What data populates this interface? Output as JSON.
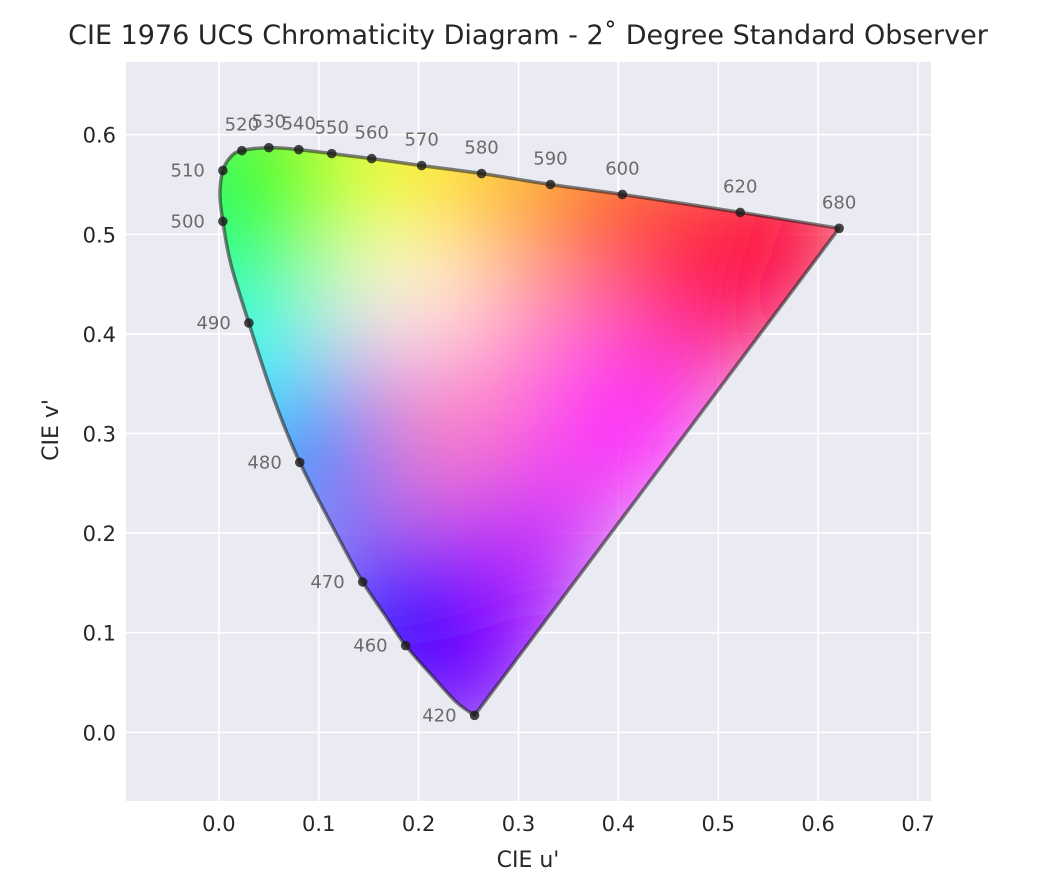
{
  "chart_data": {
    "type": "scatter",
    "title": "CIE 1976 UCS Chromaticity Diagram - 2˚ Degree Standard Observer",
    "xlabel": "CIE u'",
    "ylabel": "CIE v'",
    "xlim": [
      -0.093,
      0.713
    ],
    "ylim": [
      -0.069,
      0.673
    ],
    "grid": true,
    "background_color": "#eaeaf2",
    "grid_color": "#ffffff",
    "locus_color": "#1a1a1a",
    "x_ticks": [
      {
        "value": 0.0,
        "label": "0.0"
      },
      {
        "value": 0.1,
        "label": "0.1"
      },
      {
        "value": 0.2,
        "label": "0.2"
      },
      {
        "value": 0.3,
        "label": "0.3"
      },
      {
        "value": 0.4,
        "label": "0.4"
      },
      {
        "value": 0.5,
        "label": "0.5"
      },
      {
        "value": 0.6,
        "label": "0.6"
      },
      {
        "value": 0.7,
        "label": "0.7"
      }
    ],
    "y_ticks": [
      {
        "value": 0.0,
        "label": "0.0"
      },
      {
        "value": 0.1,
        "label": "0.1"
      },
      {
        "value": 0.2,
        "label": "0.2"
      },
      {
        "value": 0.3,
        "label": "0.3"
      },
      {
        "value": 0.4,
        "label": "0.4"
      },
      {
        "value": 0.5,
        "label": "0.5"
      },
      {
        "value": 0.6,
        "label": "0.6"
      }
    ],
    "spectral_locus": [
      [
        0.256,
        0.017
      ],
      [
        0.238,
        0.03
      ],
      [
        0.215,
        0.055
      ],
      [
        0.187,
        0.087
      ],
      [
        0.166,
        0.118
      ],
      [
        0.144,
        0.151
      ],
      [
        0.12,
        0.195
      ],
      [
        0.081,
        0.271
      ],
      [
        0.055,
        0.335
      ],
      [
        0.03,
        0.411
      ],
      [
        0.012,
        0.47
      ],
      [
        0.004,
        0.513
      ],
      [
        0.001,
        0.54
      ],
      [
        0.004,
        0.564
      ],
      [
        0.012,
        0.578
      ],
      [
        0.023,
        0.584
      ],
      [
        0.05,
        0.587
      ],
      [
        0.08,
        0.585
      ],
      [
        0.113,
        0.581
      ],
      [
        0.153,
        0.576
      ],
      [
        0.203,
        0.569
      ],
      [
        0.263,
        0.561
      ],
      [
        0.332,
        0.55
      ],
      [
        0.404,
        0.54
      ],
      [
        0.522,
        0.522
      ],
      [
        0.621,
        0.506
      ]
    ],
    "wavelength_markers": [
      {
        "label": "420",
        "u": 0.256,
        "v": 0.017,
        "side": "left"
      },
      {
        "label": "460",
        "u": 0.187,
        "v": 0.087,
        "side": "left"
      },
      {
        "label": "470",
        "u": 0.144,
        "v": 0.151,
        "side": "left"
      },
      {
        "label": "480",
        "u": 0.081,
        "v": 0.271,
        "side": "left"
      },
      {
        "label": "490",
        "u": 0.03,
        "v": 0.411,
        "side": "left"
      },
      {
        "label": "500",
        "u": 0.004,
        "v": 0.513,
        "side": "left"
      },
      {
        "label": "510",
        "u": 0.004,
        "v": 0.564,
        "side": "left"
      },
      {
        "label": "520",
        "u": 0.023,
        "v": 0.584,
        "side": "top"
      },
      {
        "label": "530",
        "u": 0.05,
        "v": 0.587,
        "side": "top"
      },
      {
        "label": "540",
        "u": 0.08,
        "v": 0.585,
        "side": "top"
      },
      {
        "label": "550",
        "u": 0.113,
        "v": 0.581,
        "side": "top"
      },
      {
        "label": "560",
        "u": 0.153,
        "v": 0.576,
        "side": "top"
      },
      {
        "label": "570",
        "u": 0.203,
        "v": 0.569,
        "side": "top"
      },
      {
        "label": "580",
        "u": 0.263,
        "v": 0.561,
        "side": "top"
      },
      {
        "label": "590",
        "u": 0.332,
        "v": 0.55,
        "side": "top"
      },
      {
        "label": "600",
        "u": 0.404,
        "v": 0.54,
        "side": "top"
      },
      {
        "label": "620",
        "u": 0.522,
        "v": 0.522,
        "side": "top"
      },
      {
        "label": "680",
        "u": 0.621,
        "v": 0.506,
        "side": "top"
      }
    ],
    "color_fill": [
      {
        "u": 0.196,
        "v": 0.467,
        "color": "#ffffff"
      },
      {
        "u": 0.12,
        "v": 0.548,
        "color": "#c8ff3c"
      },
      {
        "u": 0.197,
        "v": 0.555,
        "color": "#ffff00"
      },
      {
        "u": 0.303,
        "v": 0.539,
        "color": "#ffb800"
      },
      {
        "u": 0.415,
        "v": 0.525,
        "color": "#ff5000"
      },
      {
        "u": 0.56,
        "v": 0.506,
        "color": "#ff0000"
      },
      {
        "u": 0.5,
        "v": 0.44,
        "color": "#ff004f"
      },
      {
        "u": 0.4,
        "v": 0.31,
        "color": "#ff00ff"
      },
      {
        "u": 0.3,
        "v": 0.17,
        "color": "#b400ff"
      },
      {
        "u": 0.24,
        "v": 0.055,
        "color": "#7a00ff"
      },
      {
        "u": 0.17,
        "v": 0.12,
        "color": "#0000ff"
      },
      {
        "u": 0.09,
        "v": 0.28,
        "color": "#0078ff"
      },
      {
        "u": 0.03,
        "v": 0.405,
        "color": "#00ffff"
      },
      {
        "u": 0.015,
        "v": 0.505,
        "color": "#00ff78"
      },
      {
        "u": 0.04,
        "v": 0.565,
        "color": "#00ff00"
      }
    ]
  }
}
